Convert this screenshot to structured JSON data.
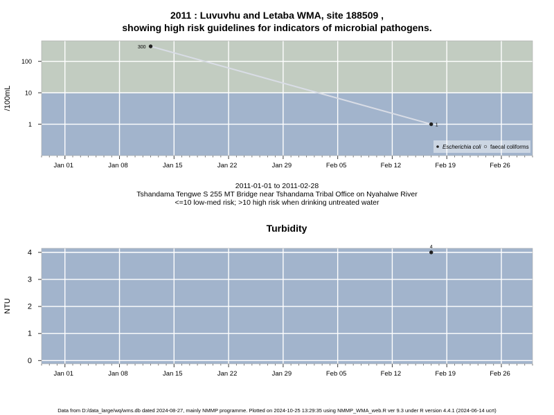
{
  "header": {
    "title_line1": "2011 : Luvuvhu and Letaba WMA, site 188509 ,",
    "title_line2": "showing high risk guidelines for indicators of microbial pathogens."
  },
  "subtitle": {
    "date_range": "2011-01-01 to 2011-02-28",
    "site_desc": "Tshandama Tengwe S 255 MT Bridge near Tshandama Tribal Office on Nyahalwe River",
    "risk_note": "<=10 low-med risk; >10 high risk when drinking untreated water"
  },
  "footer": {
    "text": "Data from D:/data_large/wq/wms.db dated 2024-08-27, mainly NMMP programme. Plotted on 2024-10-25 13:29:35 using NMMP_WMA_web.R ver 9.3 under R version 4.4.1 (2024-06-14 ucrt)"
  },
  "colors": {
    "high_risk_band": "#c2ccc1",
    "low_risk_band": "#a2b4cc",
    "grid": "#ffffff",
    "series_line": "#d9dde6",
    "point": "#222222"
  },
  "chart_data": [
    {
      "type": "line",
      "ylabel": "/100mL",
      "yscale": "log",
      "yticks": [
        1,
        10,
        100
      ],
      "ytick_labels": [
        "1",
        "10",
        "100"
      ],
      "ylim": [
        0.1,
        450
      ],
      "xlim": [
        "2010-12-29",
        "2011-03-02"
      ],
      "xticks": [
        "2011-01-01",
        "2011-01-08",
        "2011-01-15",
        "2011-01-22",
        "2011-01-29",
        "2011-02-05",
        "2011-02-12",
        "2011-02-19",
        "2011-02-26"
      ],
      "xtick_labels": [
        "Jan 01",
        "Jan 08",
        "Jan 15",
        "Jan 22",
        "Jan 29",
        "Feb 05",
        "Feb 12",
        "Feb 19",
        "Feb 26"
      ],
      "bands": [
        {
          "from": 10,
          "to": 450,
          "color": "#c2ccc1"
        },
        {
          "from": 0.1,
          "to": 10,
          "color": "#a2b4cc"
        }
      ],
      "series": [
        {
          "name": "Escherichia coli",
          "points": [
            {
              "x": "2011-01-12",
              "y": 300,
              "label": "300"
            },
            {
              "x": "2011-02-17",
              "y": 1,
              "label": "1"
            }
          ]
        }
      ],
      "legend": {
        "position": "bottom-right",
        "entries": [
          "Escherichia coli",
          "faecal coliforms"
        ]
      }
    },
    {
      "type": "scatter",
      "title": "Turbidity",
      "ylabel": "NTU",
      "yticks": [
        0,
        1,
        2,
        3,
        4
      ],
      "ytick_labels": [
        "0",
        "1",
        "2",
        "3",
        "4"
      ],
      "ylim": [
        -0.12,
        4.15
      ],
      "xlim": [
        "2010-12-29",
        "2011-03-02"
      ],
      "xticks": [
        "2011-01-01",
        "2011-01-08",
        "2011-01-15",
        "2011-01-22",
        "2011-01-29",
        "2011-02-05",
        "2011-02-12",
        "2011-02-19",
        "2011-02-26"
      ],
      "xtick_labels": [
        "Jan 01",
        "Jan 08",
        "Jan 15",
        "Jan 22",
        "Jan 29",
        "Feb 05",
        "Feb 12",
        "Feb 19",
        "Feb 26"
      ],
      "series": [
        {
          "points": [
            {
              "x": "2011-02-17",
              "y": 4,
              "label": "4"
            }
          ]
        }
      ]
    }
  ]
}
